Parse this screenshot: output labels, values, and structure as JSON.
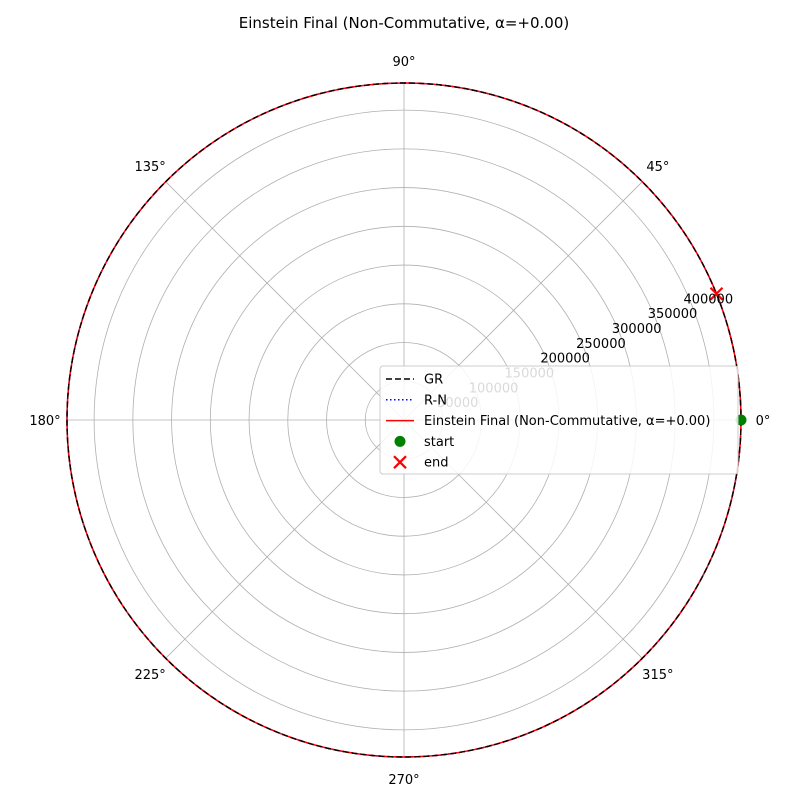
{
  "chart_data": {
    "type": "polar",
    "title": "Einstein Final (Non-Commutative, α=+0.00)",
    "r_ticks": [
      50000,
      100000,
      150000,
      200000,
      250000,
      300000,
      350000,
      400000
    ],
    "r_tick_labels": [
      "50000",
      "100000",
      "150000",
      "200000",
      "250000",
      "300000",
      "350000",
      "400000"
    ],
    "rlim": [
      0,
      435000
    ],
    "theta_ticks_deg": [
      0,
      45,
      90,
      135,
      180,
      225,
      270,
      315
    ],
    "theta_tick_labels": [
      "0°",
      "45°",
      "90°",
      "135°",
      "180°",
      "225°",
      "270°",
      "315°"
    ],
    "grid": true,
    "legend_position": "center-right",
    "series": [
      {
        "name": "GR",
        "style": "dashed",
        "color": "#000000",
        "r": 435000,
        "theta_deg": [
          0,
          360
        ]
      },
      {
        "name": "R-N",
        "style": "dotted",
        "color": "#0000ff",
        "r": 435000,
        "theta_deg": [
          0,
          360
        ]
      },
      {
        "name": "Einstein Final (Non-Commutative, α=+0.00)",
        "style": "solid",
        "color": "#ff0000",
        "r": 435000,
        "theta_deg": [
          0,
          360
        ]
      }
    ],
    "markers": [
      {
        "name": "start",
        "marker": "circle",
        "color": "#008000",
        "r": 435000,
        "theta_deg": 0
      },
      {
        "name": "end",
        "marker": "x",
        "color": "#ff0000",
        "r": 435000,
        "theta_deg": 22
      }
    ]
  }
}
